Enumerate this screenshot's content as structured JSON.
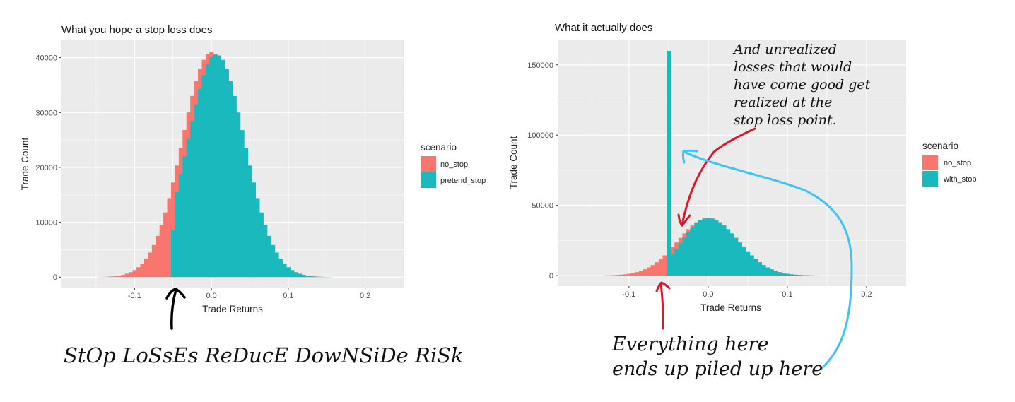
{
  "colors": {
    "no_stop": "#F8766D",
    "stop": "#19B9BE",
    "panel": "#EBEBEB",
    "grid": "#FFFFFF",
    "red_arrow": "#E0152A",
    "blue_arrow": "#3BC4F4",
    "black_arrow": "#000000"
  },
  "chart_data": [
    {
      "type": "histogram",
      "title": "What you hope a stop loss does",
      "xlabel": "Trade Returns",
      "ylabel": "Trade Count",
      "xlim": [
        -0.195,
        0.25
      ],
      "ylim": [
        -1900,
        43300
      ],
      "xticks": [
        "-0.1",
        "0.0",
        "0.1",
        "0.2"
      ],
      "yticks": [
        "0",
        "10000",
        "20000",
        "30000",
        "40000"
      ],
      "grid": true,
      "legend": {
        "title": "scenario",
        "position": "right",
        "entries": [
          "no_stop",
          "pretend_stop"
        ]
      },
      "bin_width": 0.005,
      "series": [
        {
          "name": "no_stop",
          "x_start": -0.145,
          "values": [
            28,
            46,
            75,
            118,
            183,
            280,
            421,
            621,
            902,
            1285,
            1801,
            2481,
            3359,
            4469,
            5847,
            7515,
            9496,
            11783,
            14387,
            17253,
            20336,
            23563,
            26826,
            30024,
            33021,
            35699,
            37929,
            39606,
            40647,
            41000,
            40647,
            39606,
            37929,
            35699,
            33021,
            30024,
            26826,
            23563,
            20336,
            17253,
            14387,
            11783,
            9496,
            7515,
            5847,
            4469,
            3359,
            2481,
            1801,
            1285,
            902,
            621,
            421,
            280,
            183,
            118,
            75,
            46,
            28,
            17,
            10
          ]
        },
        {
          "name": "pretend_stop",
          "x_start": -0.05,
          "values": [
            8600,
            15500,
            18800,
            22000,
            25200,
            28400,
            31500,
            34300,
            36800,
            38800,
            40200,
            40600,
            40400,
            39600,
            37900,
            35700,
            33000,
            30000,
            26800,
            23560,
            20340,
            17250,
            14390,
            11780,
            9500,
            7515,
            5850,
            4470,
            3360,
            2480,
            1800,
            1285,
            900,
            620,
            420,
            280,
            183,
            118,
            75,
            46,
            28,
            17
          ]
        }
      ]
    },
    {
      "type": "histogram",
      "title": "What it actually does",
      "xlabel": "Trade Returns",
      "ylabel": "Trade Count",
      "xlim": [
        -0.19,
        0.25
      ],
      "ylim": [
        -7500,
        168000
      ],
      "xticks": [
        "-0.1",
        "0.0",
        "0.1",
        "0.2"
      ],
      "yticks": [
        "0",
        "50000",
        "100000",
        "150000"
      ],
      "grid": true,
      "legend": {
        "title": "scenario",
        "position": "right",
        "entries": [
          "no_stop",
          "with_stop"
        ]
      },
      "bin_width": 0.005,
      "series": [
        {
          "name": "no_stop",
          "x_start": -0.13,
          "values": [
            118,
            183,
            280,
            421,
            621,
            902,
            1285,
            1801,
            2481,
            3359,
            4469,
            5847,
            7515,
            9496,
            11783,
            14387,
            17253,
            20336,
            23563,
            26826,
            30024,
            33021,
            35699,
            37929,
            39606,
            40647,
            41000,
            40647,
            39606,
            37929,
            35699,
            33021,
            30024,
            26826,
            23563,
            20336,
            17253,
            14387,
            11783,
            9496,
            7515,
            5847,
            4469,
            3359,
            2481,
            1801,
            1285,
            902,
            621,
            421,
            280,
            183,
            118,
            75
          ]
        },
        {
          "name": "with_stop",
          "x_start": -0.05,
          "values": [
            160000,
            15000,
            19000,
            23000,
            27000,
            31000,
            34500,
            37500,
            39606,
            40647,
            41000,
            40647,
            39606,
            37929,
            35699,
            33021,
            30024,
            26826,
            23563,
            20336,
            17253,
            14387,
            11783,
            9496,
            7515,
            5847,
            4469,
            3359,
            2481,
            1801,
            1285,
            902,
            621,
            421,
            280,
            183,
            118,
            75
          ]
        }
      ]
    }
  ],
  "annotations": {
    "left_caption": "StOp LoSsEs ReDucE DowNSiDe RiSk",
    "right_top": [
      "And unrealized",
      "losses that would",
      "have come good get",
      "realized at the",
      "stop loss point."
    ],
    "right_bottom": [
      "Everything here",
      "ends up piled up here"
    ]
  }
}
